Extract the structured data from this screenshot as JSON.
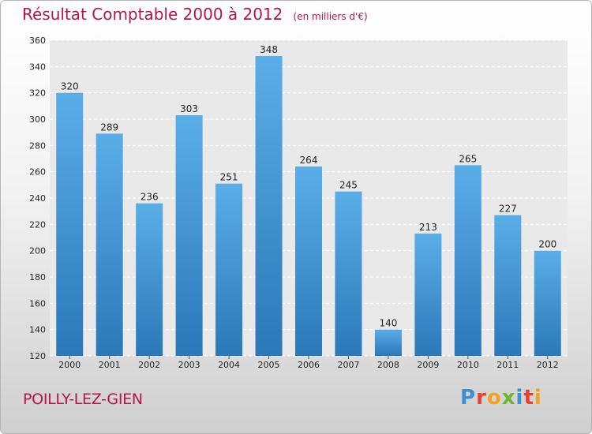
{
  "header": {
    "title": "Résultat Comptable 2000 à 2012",
    "subtitle": "(en milliers d'€)"
  },
  "footer": {
    "city": "POILLY-LEZ-GIEN",
    "logo_letters": [
      "P",
      "r",
      "o",
      "x",
      "i",
      "t",
      "i"
    ],
    "logo_colors": [
      "#3d8fd1",
      "#e8412c",
      "#f5a21b",
      "#6bb82d",
      "#3d8fd1",
      "#e8412c",
      "#f5a21b"
    ]
  },
  "chart_data": {
    "type": "bar",
    "title": "Résultat Comptable 2000 à 2012",
    "subtitle": "(en milliers d'€)",
    "categories": [
      "2000",
      "2001",
      "2002",
      "2003",
      "2004",
      "2005",
      "2006",
      "2007",
      "2008",
      "2009",
      "2010",
      "2011",
      "2012"
    ],
    "values": [
      320,
      289,
      236,
      303,
      251,
      348,
      264,
      245,
      140,
      213,
      265,
      227,
      200
    ],
    "ylim": [
      120,
      360
    ],
    "yticks": [
      120,
      140,
      160,
      180,
      200,
      220,
      240,
      260,
      280,
      300,
      320,
      340,
      360
    ],
    "grid": true,
    "bar_color_top": "#5aaee8",
    "bar_color_bottom": "#2b78b8"
  }
}
